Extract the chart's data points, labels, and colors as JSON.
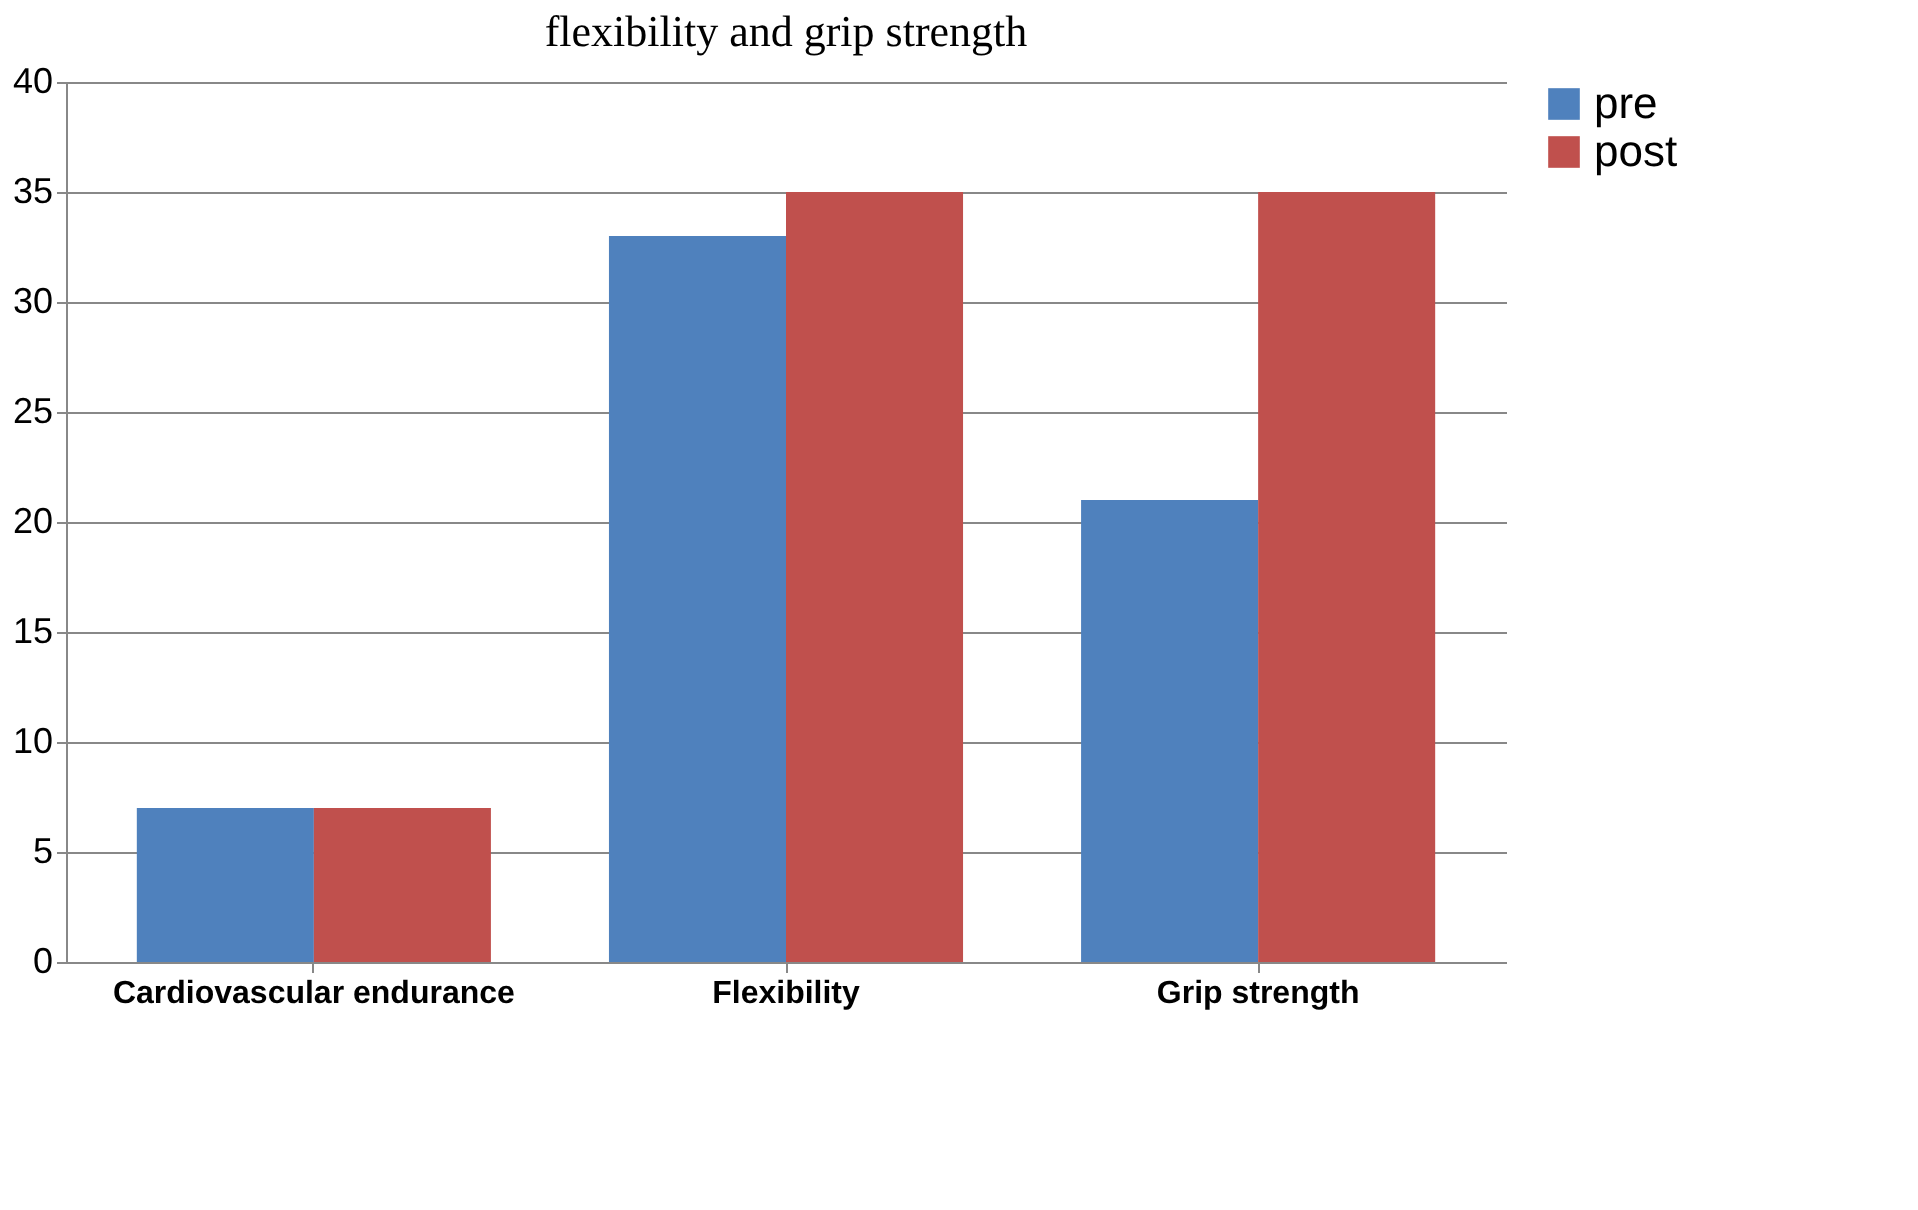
{
  "chart_data": {
    "type": "bar",
    "title": "flexibility and grip strength",
    "categories": [
      "Cardiovascular endurance",
      "Flexibility",
      "Grip strength"
    ],
    "series": [
      {
        "name": "pre",
        "color": "#4f81bd",
        "values": [
          7,
          33,
          21
        ]
      },
      {
        "name": "post",
        "color": "#c0504d",
        "values": [
          7,
          35,
          35
        ]
      }
    ],
    "ylim": [
      0,
      40
    ],
    "yticks": [
      0,
      5,
      10,
      15,
      20,
      25,
      30,
      35,
      40
    ],
    "grid": "y",
    "legend": "right"
  }
}
